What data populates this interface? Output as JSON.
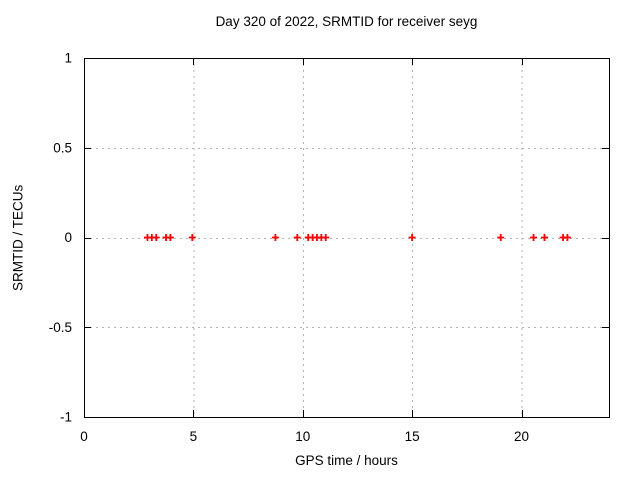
{
  "chart_data": {
    "type": "scatter",
    "title": "Day 320 of 2022, SRMTID for receiver seyg",
    "xlabel": "GPS time / hours",
    "ylabel": "SRMTID / TECUs",
    "xlim": [
      0,
      24
    ],
    "ylim": [
      -1,
      1
    ],
    "xticks": [
      0,
      5,
      10,
      15,
      20
    ],
    "yticks": [
      -1,
      -0.5,
      0,
      0.5,
      1
    ],
    "ytick_labels": [
      "-1",
      "-0.5",
      "0",
      "0.5",
      "1"
    ],
    "xtick_labels": [
      "0",
      "5",
      "10",
      "15",
      "20"
    ],
    "grid": true,
    "legend": "none",
    "marker": "plus",
    "series": [
      {
        "name": "SRMTID",
        "x": [
          2.9,
          3.1,
          3.3,
          3.75,
          3.95,
          4.95,
          8.75,
          9.75,
          10.25,
          10.45,
          10.65,
          10.85,
          11.05,
          15.0,
          19.05,
          20.55,
          21.05,
          21.9,
          22.1
        ],
        "y": [
          0,
          0,
          0,
          0,
          0,
          0,
          0,
          0,
          0,
          0,
          0,
          0,
          0,
          0,
          0,
          0,
          0,
          0,
          0
        ]
      }
    ]
  },
  "colors": {
    "background": "#ffffff",
    "border": "#000000",
    "grid": "#b3b3b3",
    "tick_text": "#000000",
    "marker": "#ff0000"
  }
}
